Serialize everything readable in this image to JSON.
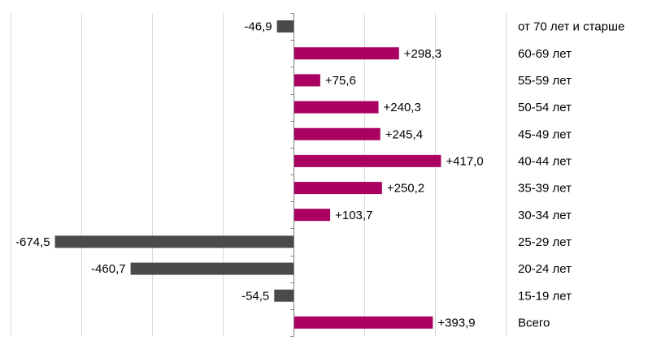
{
  "chart_data": {
    "type": "bar",
    "orientation": "horizontal",
    "categories": [
      "от 70 лет и старше",
      "60-69 лет",
      "55-59 лет",
      "50-54 лет",
      "45-49 лет",
      "40-44 лет",
      "35-39 лет",
      "30-34 лет",
      "25-29 лет",
      "20-24 лет",
      "15-19 лет",
      "Всего"
    ],
    "values": [
      -46.9,
      298.3,
      75.6,
      240.3,
      245.4,
      417.0,
      250.2,
      103.7,
      -674.5,
      -460.7,
      -54.5,
      393.9
    ],
    "value_labels": [
      "-46,9",
      "+298,3",
      "+75,6",
      "+240,3",
      "+245,4",
      "+417,0",
      "+250,2",
      "+103,7",
      "-674,5",
      "-460,7",
      "-54,5",
      "+393,9"
    ],
    "xlim": [
      -800,
      600
    ],
    "grid": true,
    "colors": {
      "positive": "#aa0061",
      "negative": "#4a4a4a",
      "grid": "#d9d9d9",
      "axis": "#808080"
    }
  }
}
